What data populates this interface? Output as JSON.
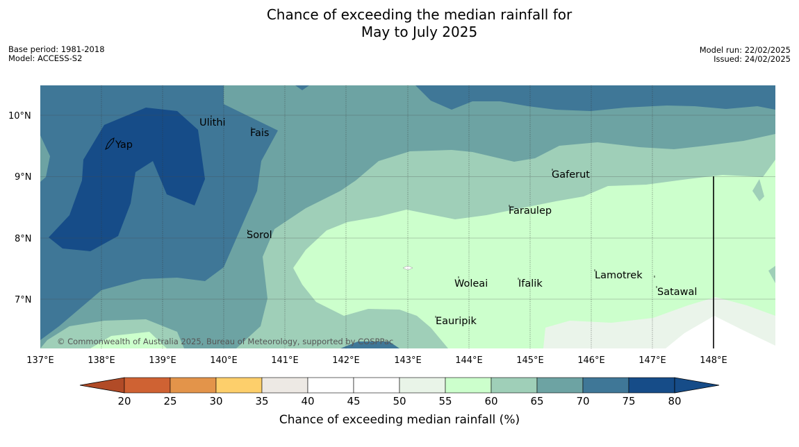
{
  "title_line1": "Chance of exceeding the median rainfall for",
  "title_line2": "May to July 2025",
  "meta_left": {
    "base_period": "Base period: 1981-2018",
    "model": "Model: ACCESS-S2"
  },
  "meta_right": {
    "model_run": "Model run: 22/02/2025",
    "issued": "Issued: 24/02/2025"
  },
  "copyright": "© Commonwealth of Australia 2025, Bureau of Meteorology, supported by COSPPac",
  "longitude_labels": [
    "137°E",
    "138°E",
    "139°E",
    "140°E",
    "141°E",
    "142°E",
    "143°E",
    "144°E",
    "145°E",
    "146°E",
    "147°E",
    "148°E"
  ],
  "latitude_labels": [
    "10°N",
    "9°N",
    "8°N",
    "7°N"
  ],
  "places": [
    "Yap",
    "Ulithi",
    "Fais",
    "Gaferut",
    "Faraulep",
    "Sorol",
    "Woleai",
    "Ifalik",
    "Lamotrek",
    "Satawal",
    "Eauripik"
  ],
  "colorbar": {
    "label": "Chance of exceeding median rainfall (%)",
    "ticks": [
      "20",
      "25",
      "30",
      "35",
      "40",
      "45",
      "50",
      "55",
      "60",
      "65",
      "70",
      "75",
      "80"
    ],
    "colors": [
      "#b14b27",
      "#cf6233",
      "#e3944a",
      "#fdcf6b",
      "#ede9e4",
      "#ffffff",
      "#ffffff",
      "#e9f4e8",
      "#ccffcc",
      "#9fcfb8",
      "#6da3a3",
      "#3f7797",
      "#164c88"
    ]
  },
  "classes": {
    "c60": "#ccffcc",
    "c65": "#9fcfb8",
    "c70": "#6da3a3",
    "c75": "#3f7797",
    "c80": "#164c88",
    "c50": "#eaf4ea",
    "c45": "#ffffff"
  }
}
